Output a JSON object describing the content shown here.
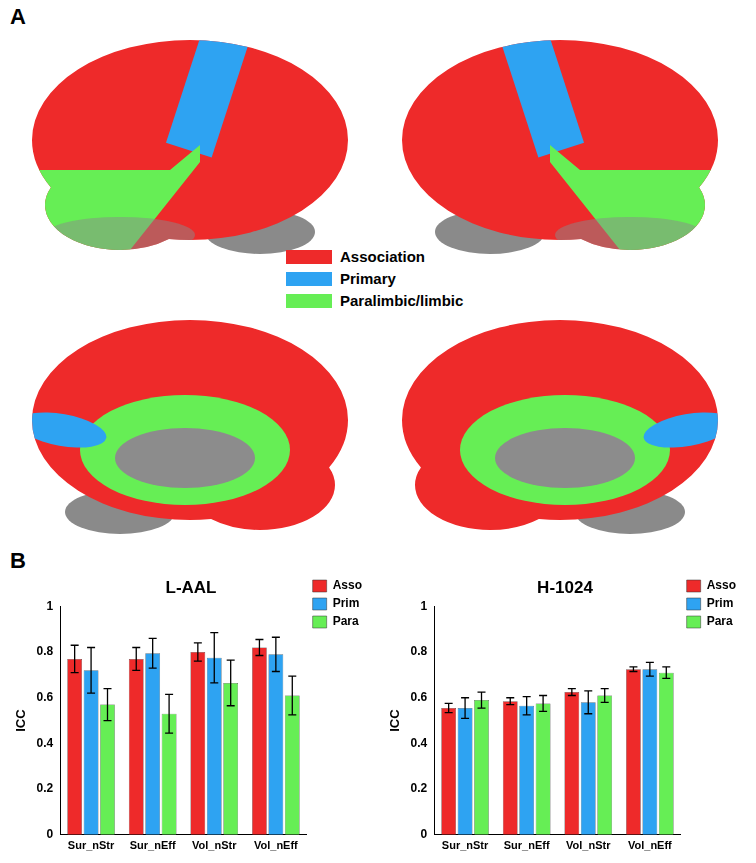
{
  "panel_labels": [
    "A",
    "B"
  ],
  "brain_map": {
    "legend": [
      {
        "name": "Association",
        "color": "#ee2a2a"
      },
      {
        "name": "Primary",
        "color": "#2ea3f2"
      },
      {
        "name": "Paralimbic/limbic",
        "color": "#66ee55"
      }
    ]
  },
  "chart_data": [
    {
      "type": "bar",
      "title": "L-AAL",
      "y_label": "ICC",
      "categories": [
        "Sur_nStr",
        "Sur_nEff",
        "Vol_nStr",
        "Vol_nEff"
      ],
      "series": [
        {
          "name": "Asso",
          "color": "#ee2a2a",
          "values": [
            0.77,
            0.77,
            0.8,
            0.82
          ],
          "errors": [
            0.06,
            0.05,
            0.04,
            0.035
          ]
        },
        {
          "name": "Prim",
          "color": "#2ea3f2",
          "values": [
            0.72,
            0.795,
            0.775,
            0.79
          ],
          "errors": [
            0.1,
            0.065,
            0.11,
            0.075
          ]
        },
        {
          "name": "Para",
          "color": "#66ee55",
          "values": [
            0.57,
            0.53,
            0.665,
            0.61
          ],
          "errors": [
            0.07,
            0.085,
            0.1,
            0.085
          ]
        }
      ],
      "ylim": [
        0,
        1
      ],
      "yticks": [
        0,
        0.2,
        0.4,
        0.6,
        0.8,
        1
      ],
      "grid": false,
      "legend": "upper right"
    },
    {
      "type": "bar",
      "title": "H-1024",
      "y_label": "ICC",
      "categories": [
        "Sur_nStr",
        "Sur_nEff",
        "Vol_nStr",
        "Vol_nEff"
      ],
      "series": [
        {
          "name": "Asso",
          "color": "#ee2a2a",
          "values": [
            0.555,
            0.585,
            0.625,
            0.725
          ],
          "errors": [
            0.02,
            0.015,
            0.015,
            0.01
          ]
        },
        {
          "name": "Prim",
          "color": "#2ea3f2",
          "values": [
            0.555,
            0.565,
            0.58,
            0.725
          ],
          "errors": [
            0.045,
            0.04,
            0.05,
            0.03
          ]
        },
        {
          "name": "Para",
          "color": "#66ee55",
          "values": [
            0.59,
            0.575,
            0.61,
            0.71
          ],
          "errors": [
            0.035,
            0.035,
            0.03,
            0.025
          ]
        }
      ],
      "ylim": [
        0,
        1
      ],
      "yticks": [
        0,
        0.2,
        0.4,
        0.6,
        0.8,
        1
      ],
      "grid": false,
      "legend": "upper right"
    }
  ]
}
